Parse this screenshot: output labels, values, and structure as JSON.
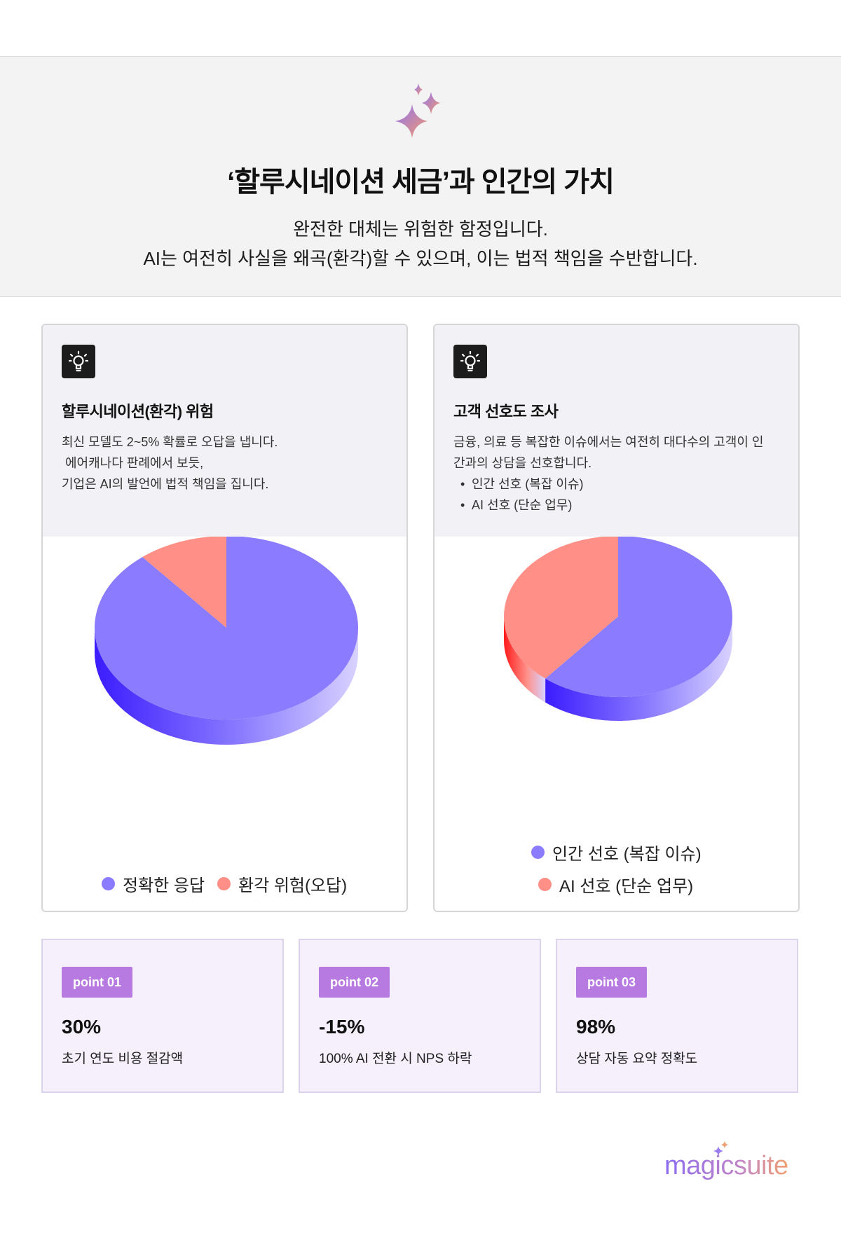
{
  "hero": {
    "icon": "sparkle-icon",
    "title": "‘할루시네이션 세금’과 인간의 가치",
    "subtitle_line1": "완전한 대체는 위험한 함정입니다.",
    "subtitle_line2": "AI는 여전히 사실을 왜곡(환각)할 수 있으며, 이는 법적 책임을 수반합니다."
  },
  "cards": [
    {
      "icon": "lightbulb-icon",
      "title": "할루시네이션(환각) 위험",
      "desc_lines": [
        "최신 모델도 2~5% 확률로 오답을 냅니다.",
        " 에어캐나다 판례에서 보듯,",
        "기업은 AI의 발언에 법적 책임을 집니다."
      ]
    },
    {
      "icon": "lightbulb-icon",
      "title": "고객 선호도 조사",
      "desc_lines": [
        "금융, 의료 등 복잡한 이슈에서는 여전히 대다수의 고객이 인",
        "간과의 상담을 선호합니다."
      ],
      "bullets": [
        "인간 선호 (복잡 이슈)",
        "AI 선호 (단순 업무)"
      ]
    }
  ],
  "chart_data": [
    {
      "type": "pie",
      "title": "",
      "categories": [
        "정확한 응답",
        "환각 위험(오답)"
      ],
      "values": [
        89,
        11
      ],
      "colors": [
        "#8a7bff",
        "#ff8f87"
      ],
      "legend_placement": "bottom"
    },
    {
      "type": "pie",
      "title": "",
      "categories": [
        "인간 선호 (복잡 이슈)",
        "AI 선호 (단순 업무)"
      ],
      "values": [
        61,
        39
      ],
      "colors": [
        "#8a7bff",
        "#ff8f87"
      ],
      "legend_placement": "bottom"
    }
  ],
  "points": [
    {
      "badge": "point 01",
      "value": "30%",
      "label": "초기 연도 비용 절감액"
    },
    {
      "badge": "point 02",
      "value": "-15%",
      "label": "100% AI 전환 시 NPS 하락"
    },
    {
      "badge": "point 03",
      "value": "98%",
      "label": "상담 자동 요약 정확도"
    }
  ],
  "brand": {
    "name": "magicsuite",
    "icon": "sparkle-icon"
  },
  "colors": {
    "accent": "#8a7bff",
    "accent_side": "#3b1cff",
    "alert": "#ff8f87",
    "alert_side": "#ff1a1a",
    "badge": "#b77ae0",
    "point_bg": "#f5f0fc"
  }
}
